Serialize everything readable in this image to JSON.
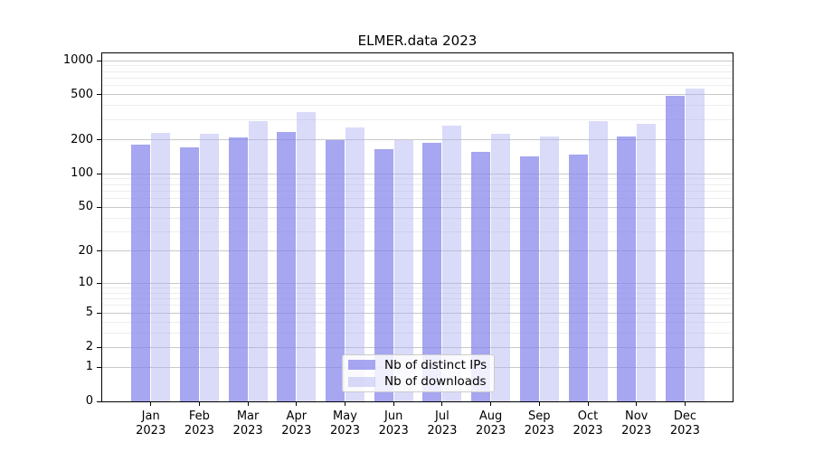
{
  "title": "ELMER.data 2023",
  "chart_data": {
    "type": "bar",
    "yscale": "log1p",
    "title": "ELMER.data 2023",
    "xlabel": "",
    "ylabel": "",
    "categories": [
      "Jan",
      "Feb",
      "Mar",
      "Apr",
      "May",
      "Jun",
      "Jul",
      "Aug",
      "Sep",
      "Oct",
      "Nov",
      "Dec"
    ],
    "x_year_label": "2023",
    "series": [
      {
        "name": "Nb of distinct IPs",
        "color": "rgba(132,132,235,0.72)",
        "values": [
          180,
          172,
          210,
          235,
          200,
          165,
          188,
          157,
          142,
          147,
          214,
          488
        ]
      },
      {
        "name": "Nb of downloads",
        "color": "rgba(172,172,242,0.45)",
        "values": [
          230,
          225,
          295,
          350,
          255,
          200,
          265,
          225,
          215,
          295,
          275,
          568
        ]
      }
    ],
    "yticks": [
      0,
      1,
      2,
      5,
      10,
      20,
      50,
      100,
      200,
      500,
      1000
    ],
    "ygrid_minor": [
      3,
      4,
      6,
      7,
      8,
      9,
      30,
      40,
      60,
      70,
      80,
      90,
      300,
      400,
      600,
      700,
      800,
      900
    ],
    "ylim": [
      0,
      1160
    ],
    "grid": true,
    "legend_position": "lower center"
  },
  "legend": {
    "items": [
      {
        "label": "Nb of distinct IPs",
        "color": "rgba(132,132,235,0.72)"
      },
      {
        "label": "Nb of downloads",
        "color": "rgba(172,172,242,0.45)"
      }
    ]
  },
  "colors": {
    "grid_major": "#c9c9c9",
    "grid_minor": "#ededed",
    "axis": "#000000",
    "background": "#ffffff"
  }
}
